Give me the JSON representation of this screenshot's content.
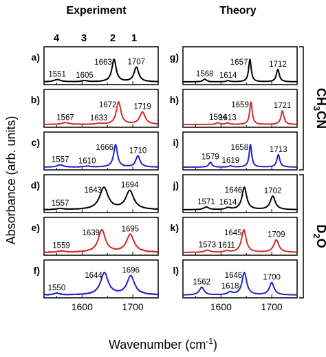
{
  "columns": [
    {
      "title": "Experiment"
    },
    {
      "title": "Theory"
    }
  ],
  "peak_numbers": [
    "4",
    "3",
    "2",
    "1"
  ],
  "solvents": {
    "ch3cn": {
      "base": "CH",
      "sub1": "3",
      "rest": "CN"
    },
    "d2o": {
      "base": "D",
      "sub1": "2",
      "rest": "O"
    }
  },
  "chart_data": {
    "type": "line",
    "xlabel": "Wavenumber (cm",
    "xlabel_sup": "-1",
    "xlabel_end": ")",
    "ylabel": "Absorbance (arb. units)",
    "xlim": [
      1525,
      1750
    ],
    "xticks": [
      "1600",
      "1700"
    ],
    "xtick_values": [
      1600,
      1700
    ],
    "panels": [
      {
        "id": "a",
        "label": "a)",
        "color": "#000000",
        "noise": 0.8,
        "peaks": [
          {
            "x": 1551,
            "h": 0.1,
            "w": 16
          },
          {
            "x": 1605,
            "h": 0.05,
            "w": 14
          },
          {
            "x": 1663,
            "h": 1.0,
            "w": 10
          },
          {
            "x": 1707,
            "h": 0.65,
            "w": 11
          }
        ],
        "labels": [
          "1551",
          "1605",
          "1663",
          "1707"
        ]
      },
      {
        "id": "b",
        "label": "b)",
        "color": "#d42a2a",
        "noise": 0.8,
        "peaks": [
          {
            "x": 1567,
            "h": 0.08,
            "w": 18
          },
          {
            "x": 1633,
            "h": 0.04,
            "w": 14
          },
          {
            "x": 1672,
            "h": 1.0,
            "w": 11
          },
          {
            "x": 1719,
            "h": 0.55,
            "w": 13
          }
        ],
        "labels": [
          "1567",
          "1633",
          "1672",
          "1719"
        ]
      },
      {
        "id": "c",
        "label": "c)",
        "color": "#2020d0",
        "noise": 0.8,
        "peaks": [
          {
            "x": 1557,
            "h": 0.1,
            "w": 14
          },
          {
            "x": 1610,
            "h": 0.04,
            "w": 14
          },
          {
            "x": 1666,
            "h": 1.0,
            "w": 9
          },
          {
            "x": 1710,
            "h": 0.5,
            "w": 10
          }
        ],
        "labels": [
          "1557",
          "1610",
          "1666",
          "1710"
        ]
      },
      {
        "id": "d",
        "label": "d)",
        "color": "#000000",
        "noise": 1.2,
        "peaks": [
          {
            "x": 1557,
            "h": 0.05,
            "w": 14
          },
          {
            "x": 1643,
            "h": 1.0,
            "w": 20
          },
          {
            "x": 1694,
            "h": 0.85,
            "w": 19
          }
        ],
        "labels": [
          "1557",
          "1643",
          "1694"
        ]
      },
      {
        "id": "e",
        "label": "e)",
        "color": "#d42a2a",
        "noise": 2.2,
        "peaks": [
          {
            "x": 1559,
            "h": 0.06,
            "w": 14
          },
          {
            "x": 1639,
            "h": 1.0,
            "w": 17
          },
          {
            "x": 1695,
            "h": 0.8,
            "w": 18
          }
        ],
        "labels": [
          "1559",
          "1639",
          "1695"
        ]
      },
      {
        "id": "f",
        "label": "f)",
        "color": "#2020d0",
        "noise": 2.0,
        "peaks": [
          {
            "x": 1550,
            "h": 0.08,
            "w": 14
          },
          {
            "x": 1644,
            "h": 1.0,
            "w": 18
          },
          {
            "x": 1696,
            "h": 0.85,
            "w": 18
          }
        ],
        "labels": [
          "1550",
          "1644",
          "1696"
        ]
      },
      {
        "id": "g",
        "label": "g)",
        "color": "#000000",
        "noise": 0,
        "peaks": [
          {
            "x": 1568,
            "h": 0.12,
            "w": 8
          },
          {
            "x": 1614,
            "h": 0.05,
            "w": 8
          },
          {
            "x": 1657,
            "h": 1.0,
            "w": 6
          },
          {
            "x": 1712,
            "h": 0.55,
            "w": 7
          }
        ],
        "labels": [
          "1568",
          "1614",
          "1657",
          "1712"
        ]
      },
      {
        "id": "h",
        "label": "h)",
        "color": "#d42a2a",
        "noise": 0,
        "peaks": [
          {
            "x": 1594,
            "h": 0.08,
            "w": 8
          },
          {
            "x": 1613,
            "h": 0.07,
            "w": 8
          },
          {
            "x": 1659,
            "h": 1.0,
            "w": 6
          },
          {
            "x": 1721,
            "h": 0.6,
            "w": 7
          }
        ],
        "labels": [
          "1594",
          "1613",
          "1659",
          "1721"
        ]
      },
      {
        "id": "i",
        "label": "i)",
        "color": "#2020d0",
        "noise": 0,
        "peaks": [
          {
            "x": 1579,
            "h": 0.22,
            "w": 7
          },
          {
            "x": 1619,
            "h": 0.05,
            "w": 8
          },
          {
            "x": 1658,
            "h": 1.0,
            "w": 6
          },
          {
            "x": 1713,
            "h": 0.55,
            "w": 7
          }
        ],
        "labels": [
          "1579",
          "1619",
          "1658",
          "1713"
        ]
      },
      {
        "id": "j",
        "label": "j)",
        "color": "#000000",
        "noise": 0,
        "peaks": [
          {
            "x": 1571,
            "h": 0.12,
            "w": 12
          },
          {
            "x": 1614,
            "h": 0.08,
            "w": 12
          },
          {
            "x": 1646,
            "h": 1.0,
            "w": 11
          },
          {
            "x": 1702,
            "h": 0.6,
            "w": 12
          }
        ],
        "labels": [
          "1571",
          "1614",
          "1646",
          "1702"
        ]
      },
      {
        "id": "k",
        "label": "k)",
        "color": "#d42a2a",
        "noise": 0,
        "peaks": [
          {
            "x": 1573,
            "h": 0.1,
            "w": 12
          },
          {
            "x": 1611,
            "h": 0.06,
            "w": 12
          },
          {
            "x": 1645,
            "h": 1.0,
            "w": 11
          },
          {
            "x": 1709,
            "h": 0.55,
            "w": 12
          }
        ],
        "labels": [
          "1573",
          "1611",
          "1645",
          "1709"
        ]
      },
      {
        "id": "l",
        "label": "l)",
        "color": "#2020d0",
        "noise": 0,
        "peaks": [
          {
            "x": 1562,
            "h": 0.35,
            "w": 11
          },
          {
            "x": 1618,
            "h": 0.12,
            "w": 12
          },
          {
            "x": 1646,
            "h": 1.0,
            "w": 11
          },
          {
            "x": 1700,
            "h": 0.55,
            "w": 11
          }
        ],
        "labels": [
          "1562",
          "1618",
          "1646",
          "1700"
        ]
      }
    ]
  }
}
